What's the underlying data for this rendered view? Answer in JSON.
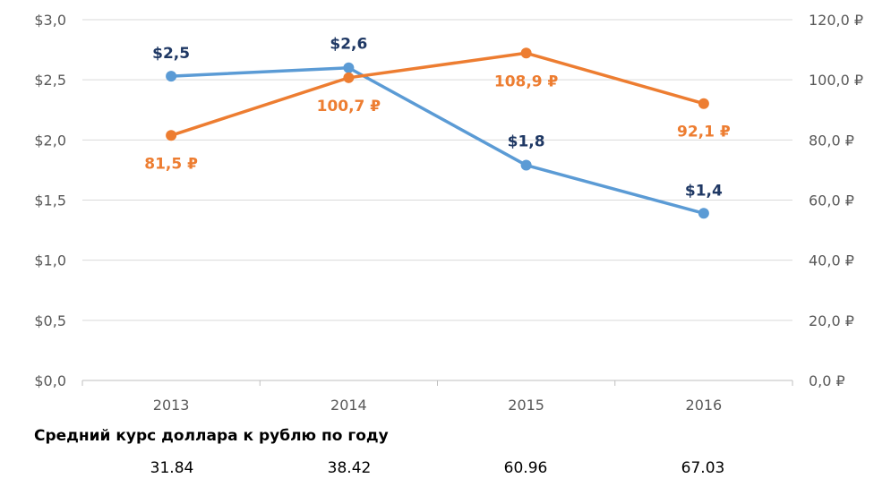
{
  "chart_data": {
    "type": "line",
    "categories": [
      "2013",
      "2014",
      "2015",
      "2016"
    ],
    "left_axis": {
      "ticks": [
        "$0,0",
        "$0,5",
        "$1,0",
        "$1,5",
        "$2,0",
        "$2,5",
        "$3,0"
      ],
      "ylim": [
        0,
        3.0
      ]
    },
    "right_axis": {
      "ticks": [
        "0,0 ₽",
        "20,0 ₽",
        "40,0 ₽",
        "60,0 ₽",
        "80,0 ₽",
        "100,0 ₽",
        "120,0 ₽"
      ],
      "ylim": [
        0,
        120
      ]
    },
    "grid": "horizontal",
    "series": [
      {
        "axis": "left",
        "color": "#5b9bd5",
        "label_color": "#1f3864",
        "values": [
          2.53,
          2.6,
          1.79,
          1.39
        ],
        "labels": [
          "$2,5",
          "$2,6",
          "$1,8",
          "$1,4"
        ]
      },
      {
        "axis": "right",
        "color": "#ed7d31",
        "label_color": "#ed7d31",
        "values": [
          81.5,
          100.7,
          108.9,
          92.1
        ],
        "labels": [
          "81,5 ₽",
          "100,7 ₽",
          "108,9 ₽",
          "92,1 ₽"
        ]
      }
    ]
  },
  "caption": "Средний курс доллара к рублю по году",
  "rates": [
    "31.84",
    "38.42",
    "60.96",
    "67.03"
  ]
}
